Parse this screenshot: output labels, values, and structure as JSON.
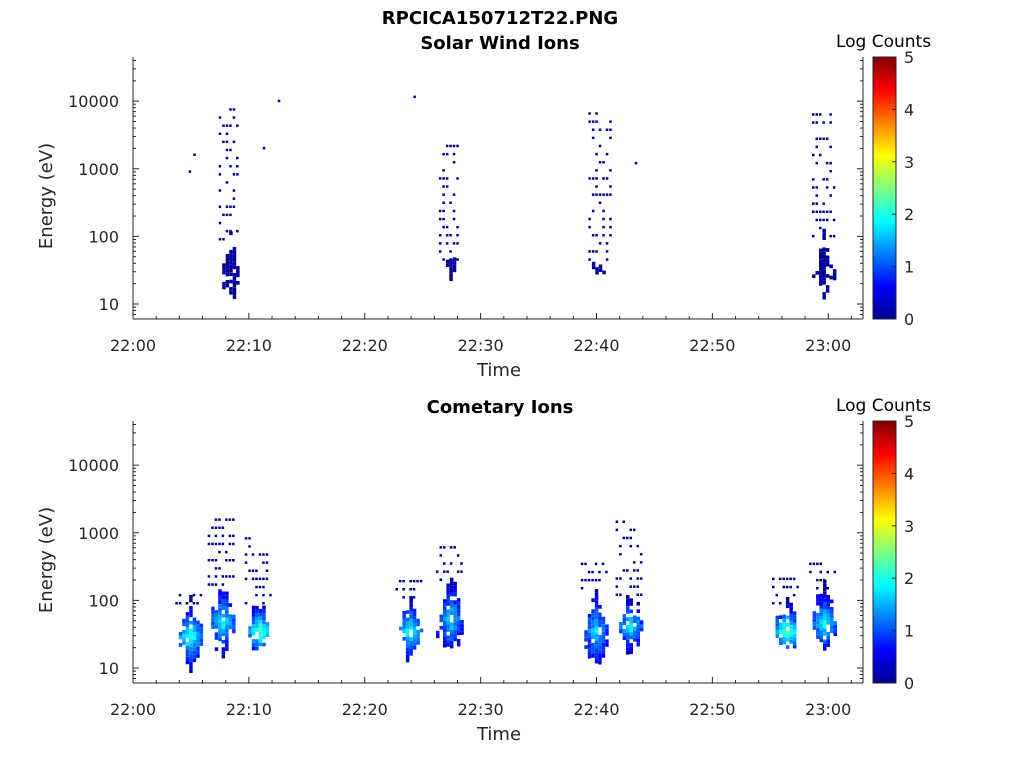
{
  "figure_title": "RPCICA150712T22.PNG",
  "chart_data": [
    {
      "type": "heatmap",
      "title": "Solar Wind Ions",
      "xlabel": "Time",
      "ylabel": "Energy (eV)",
      "x_ticks": [
        "22:00",
        "22:10",
        "22:20",
        "22:30",
        "22:40",
        "22:50",
        "23:00"
      ],
      "y_ticks": [
        "10",
        "100",
        "1000",
        "10000"
      ],
      "y_scale": "log",
      "ylim": [
        6,
        45000
      ],
      "xlim": [
        "22:00",
        "23:03"
      ],
      "colorbar": {
        "label": "Log Counts",
        "ticks": [
          "0",
          "1",
          "2",
          "3",
          "4",
          "5"
        ],
        "range": [
          0,
          5
        ],
        "colormap": "jet"
      },
      "grid": false,
      "bursts": [
        {
          "time_min": 8.3,
          "low_eV": 8,
          "high_eV": 90,
          "peak_level": 0.2,
          "scatter_high_eV": 8000
        },
        {
          "time_min": 27.3,
          "low_eV": 18,
          "high_eV": 45,
          "peak_level": 0.2,
          "scatter_high_eV": 2500
        },
        {
          "time_min": 40.2,
          "low_eV": 18,
          "high_eV": 45,
          "peak_level": 0.2,
          "scatter_high_eV": 8000
        },
        {
          "time_min": 59.5,
          "low_eV": 10,
          "high_eV": 100,
          "peak_level": 0.2,
          "scatter_high_eV": 8000
        }
      ],
      "sparse_points": [
        {
          "time_min": 4.8,
          "eV": 900
        },
        {
          "time_min": 5.2,
          "eV": 1600
        },
        {
          "time_min": 11.2,
          "eV": 2000
        },
        {
          "time_min": 12.5,
          "eV": 10000
        },
        {
          "time_min": 24.2,
          "eV": 11500
        },
        {
          "time_min": 43.3,
          "eV": 1200
        }
      ]
    },
    {
      "type": "heatmap",
      "title": "Cometary Ions",
      "xlabel": "Time",
      "ylabel": "Energy (eV)",
      "x_ticks": [
        "22:00",
        "22:10",
        "22:20",
        "22:30",
        "22:40",
        "22:50",
        "23:00"
      ],
      "y_ticks": [
        "10",
        "100",
        "1000",
        "10000"
      ],
      "y_scale": "log",
      "ylim": [
        6,
        45000
      ],
      "xlim": [
        "22:00",
        "23:03"
      ],
      "colorbar": {
        "label": "Log Counts",
        "ticks": [
          "0",
          "1",
          "2",
          "3",
          "4",
          "5"
        ],
        "range": [
          0,
          5
        ],
        "colormap": "jet"
      },
      "grid": false,
      "bursts": [
        {
          "time_min": 4.8,
          "low_eV": 8,
          "high_eV": 90,
          "peak_level": 2.2,
          "scatter_high_eV": 150
        },
        {
          "time_min": 7.6,
          "low_eV": 12,
          "high_eV": 170,
          "peak_level": 2.0,
          "scatter_high_eV": 2000
        },
        {
          "time_min": 10.8,
          "low_eV": 12,
          "high_eV": 90,
          "peak_level": 2.4,
          "scatter_high_eV": 1000
        },
        {
          "time_min": 23.8,
          "low_eV": 10,
          "high_eV": 110,
          "peak_level": 2.1,
          "scatter_high_eV": 200
        },
        {
          "time_min": 27.3,
          "low_eV": 12,
          "high_eV": 200,
          "peak_level": 1.8,
          "scatter_high_eV": 650
        },
        {
          "time_min": 39.8,
          "low_eV": 7,
          "high_eV": 150,
          "peak_level": 1.7,
          "scatter_high_eV": 450
        },
        {
          "time_min": 42.8,
          "low_eV": 12,
          "high_eV": 120,
          "peak_level": 1.9,
          "scatter_high_eV": 1800
        },
        {
          "time_min": 56.3,
          "low_eV": 12,
          "high_eV": 90,
          "peak_level": 2.5,
          "scatter_high_eV": 250
        },
        {
          "time_min": 59.5,
          "low_eV": 12,
          "high_eV": 150,
          "peak_level": 2.0,
          "scatter_high_eV": 450
        }
      ],
      "sparse_points": []
    }
  ]
}
